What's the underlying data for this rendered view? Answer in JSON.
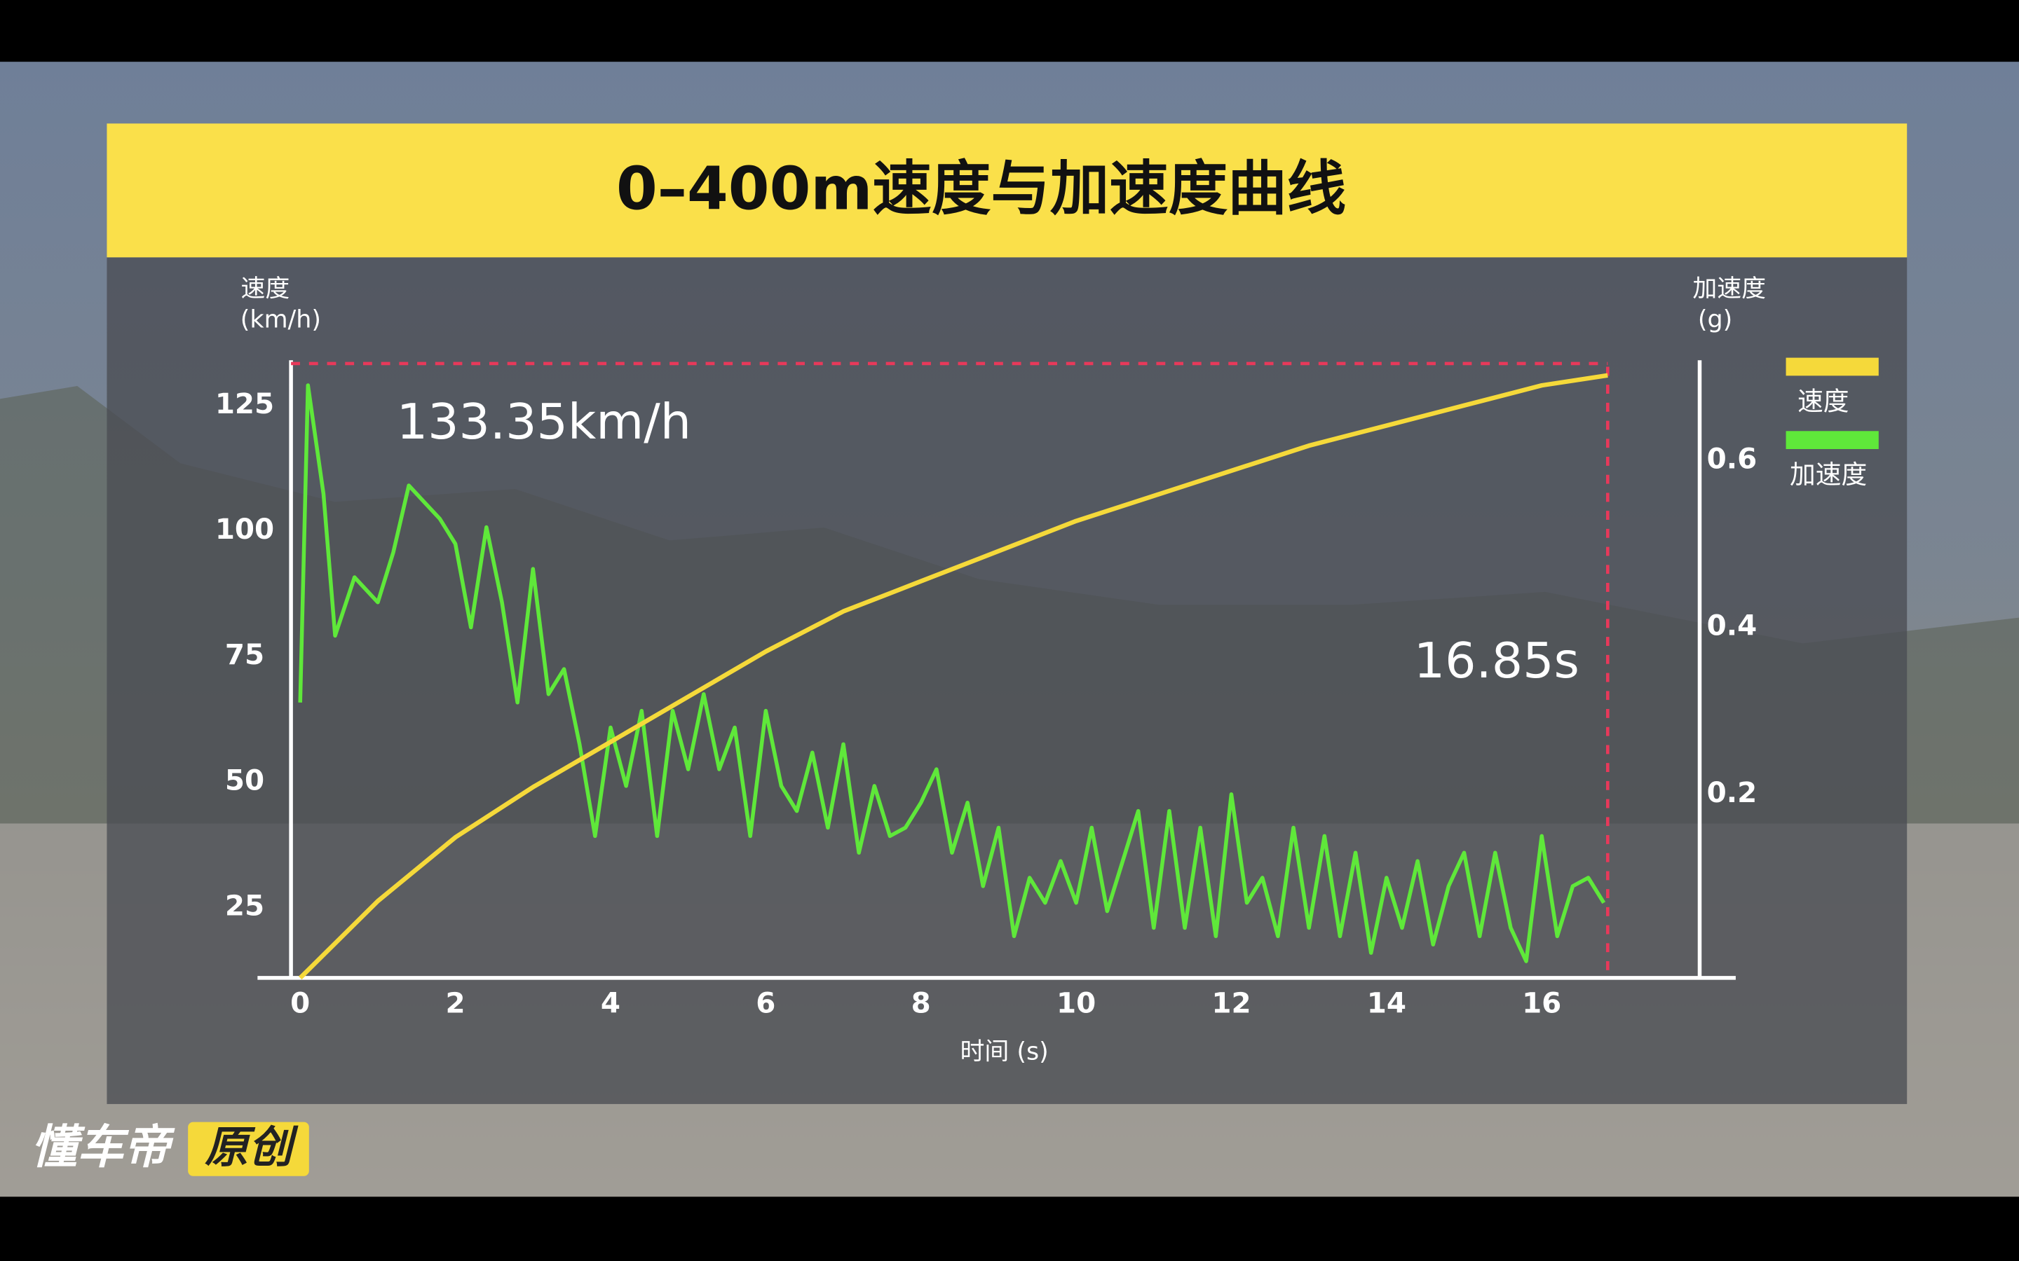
{
  "chart_data": {
    "type": "line",
    "title": "0–400m速度与加速度曲线",
    "ylabel": "速度",
    "yunit": "(km/h)",
    "y2label": "加速度",
    "y2unit": "(g)",
    "xlabel": "时间 (s)",
    "xlim": [
      -0.55,
      18.5
    ],
    "xticks": [
      0,
      2,
      4,
      6,
      8,
      10,
      12,
      14,
      16
    ],
    "ylim": [
      11,
      134
    ],
    "yticks": [
      25,
      50,
      75,
      100,
      125
    ],
    "y2lim": [
      -0.02,
      0.72
    ],
    "y2ticks": [
      0.2,
      0.4,
      0.6
    ],
    "grid": false,
    "legend": "upper right",
    "series": [
      {
        "name": "速度",
        "color": "#f5d93a",
        "x": [
          0,
          1,
          2,
          3,
          4,
          5,
          6,
          7,
          8,
          9,
          10,
          11,
          12,
          13,
          14,
          15,
          16,
          16.85
        ],
        "values": [
          11,
          26.3,
          39,
          49,
          58,
          67,
          76,
          84,
          90,
          96,
          102,
          107,
          112,
          117,
          121,
          125,
          129,
          131
        ]
      },
      {
        "name": "加速度",
        "color": "#5fe83a",
        "axis": "y2",
        "x": [
          0,
          0.1,
          0.3,
          0.45,
          0.7,
          1,
          1.2,
          1.4,
          1.6,
          1.8,
          2,
          2.2,
          2.4,
          2.6,
          2.8,
          3,
          3.2,
          3.4,
          3.6,
          3.8,
          4,
          4.2,
          4.4,
          4.6,
          4.8,
          5,
          5.2,
          5.4,
          5.6,
          5.8,
          6,
          6.2,
          6.4,
          6.6,
          6.8,
          7,
          7.2,
          7.4,
          7.6,
          7.8,
          8,
          8.2,
          8.4,
          8.6,
          8.8,
          9,
          9.2,
          9.4,
          9.6,
          9.8,
          10,
          10.2,
          10.4,
          10.6,
          10.8,
          11,
          11.2,
          11.4,
          11.6,
          11.8,
          12,
          12.2,
          12.4,
          12.6,
          12.8,
          13,
          13.2,
          13.4,
          13.6,
          13.8,
          14,
          14.2,
          14.4,
          14.6,
          14.8,
          15,
          15.2,
          15.4,
          15.6,
          15.8,
          16,
          16.2,
          16.4,
          16.6,
          16.8
        ],
        "values": [
          0.31,
          0.69,
          0.56,
          0.39,
          0.46,
          0.43,
          0.49,
          0.57,
          0.55,
          0.53,
          0.5,
          0.4,
          0.52,
          0.43,
          0.31,
          0.47,
          0.32,
          0.35,
          0.26,
          0.15,
          0.28,
          0.21,
          0.3,
          0.15,
          0.3,
          0.23,
          0.32,
          0.23,
          0.28,
          0.15,
          0.3,
          0.21,
          0.18,
          0.25,
          0.16,
          0.26,
          0.13,
          0.21,
          0.15,
          0.16,
          0.19,
          0.23,
          0.13,
          0.19,
          0.09,
          0.16,
          0.03,
          0.1,
          0.07,
          0.12,
          0.07,
          0.16,
          0.06,
          0.12,
          0.18,
          0.04,
          0.18,
          0.04,
          0.16,
          0.03,
          0.2,
          0.07,
          0.1,
          0.03,
          0.16,
          0.04,
          0.15,
          0.03,
          0.13,
          0.01,
          0.1,
          0.04,
          0.12,
          0.02,
          0.09,
          0.13,
          0.03,
          0.13,
          0.04,
          0.0,
          0.15,
          0.03,
          0.09,
          0.1,
          0.07
        ]
      }
    ],
    "annotations": [
      {
        "value": 133.35,
        "label": "133.35km/h",
        "axis": "y"
      },
      {
        "value": 16.85,
        "label": "16.85s",
        "axis": "x"
      }
    ]
  },
  "watermark": {
    "brand": "懂车帝",
    "tag": "原创"
  }
}
